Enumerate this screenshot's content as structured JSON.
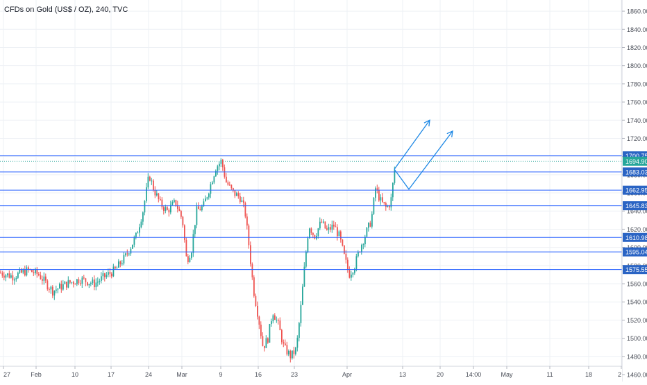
{
  "header": {
    "title": "CFDs on Gold (US$ / OZ), 240, TVC"
  },
  "colors": {
    "up": "#26a69a",
    "down": "#ef5350",
    "level_line": "#2962ff",
    "level_label_bg": "#2a64c4",
    "current_label_bg": "#26a69a",
    "projection": "#1e88e5",
    "grid": "#eef1f5",
    "axis_text": "#4a4e58"
  },
  "chart_data": {
    "type": "candlestick",
    "symbol": "CFDs on Gold (US$ / OZ)",
    "interval": "240",
    "source": "TVC",
    "ylim": [
      1460,
      1870
    ],
    "y_ticks": [
      "1860.00",
      "1840.00",
      "1820.00",
      "1800.00",
      "1780.00",
      "1760.00",
      "1740.00",
      "1720.00",
      "1700.00",
      "1680.00",
      "1660.00",
      "1640.00",
      "1620.00",
      "1600.00",
      "1580.00",
      "1560.00",
      "1540.00",
      "1520.00",
      "1500.00",
      "1480.00",
      "1460.00"
    ],
    "x_ticks": [
      "27",
      "Feb",
      "10",
      "17",
      "24",
      "Mar",
      "9",
      "16",
      "23",
      "Apr",
      "13",
      "20",
      "14:00",
      "May",
      "11",
      "18",
      "2"
    ],
    "current_price": "1694.90",
    "levels": [
      "1700.75",
      "1683.03",
      "1662.95",
      "1645.83",
      "1610.98",
      "1595.04",
      "1575.55"
    ],
    "close_path": [
      [
        0,
        1572
      ],
      [
        18,
        1568
      ],
      [
        40,
        1575
      ],
      [
        55,
        1570
      ],
      [
        75,
        1552
      ],
      [
        95,
        1560
      ],
      [
        115,
        1565
      ],
      [
        135,
        1560
      ],
      [
        150,
        1568
      ],
      [
        165,
        1575
      ],
      [
        180,
        1590
      ],
      [
        195,
        1612
      ],
      [
        205,
        1640
      ],
      [
        214,
        1680
      ],
      [
        220,
        1665
      ],
      [
        230,
        1648
      ],
      [
        240,
        1640
      ],
      [
        252,
        1650
      ],
      [
        262,
        1630
      ],
      [
        268,
        1585
      ],
      [
        275,
        1598
      ],
      [
        282,
        1640
      ],
      [
        292,
        1645
      ],
      [
        302,
        1668
      ],
      [
        310,
        1688
      ],
      [
        318,
        1695
      ],
      [
        325,
        1672
      ],
      [
        335,
        1660
      ],
      [
        345,
        1655
      ],
      [
        352,
        1640
      ],
      [
        358,
        1600
      ],
      [
        364,
        1555
      ],
      [
        372,
        1520
      ],
      [
        378,
        1490
      ],
      [
        385,
        1500
      ],
      [
        392,
        1530
      ],
      [
        400,
        1515
      ],
      [
        408,
        1490
      ],
      [
        418,
        1480
      ],
      [
        426,
        1488
      ],
      [
        432,
        1530
      ],
      [
        438,
        1580
      ],
      [
        444,
        1625
      ],
      [
        452,
        1612
      ],
      [
        462,
        1628
      ],
      [
        470,
        1618
      ],
      [
        480,
        1624
      ],
      [
        488,
        1612
      ],
      [
        495,
        1590
      ],
      [
        502,
        1570
      ],
      [
        510,
        1580
      ],
      [
        518,
        1600
      ],
      [
        526,
        1615
      ],
      [
        534,
        1630
      ],
      [
        540,
        1665
      ],
      [
        548,
        1650
      ],
      [
        556,
        1643
      ],
      [
        562,
        1650
      ],
      [
        568,
        1688
      ]
    ],
    "projections": [
      {
        "points": [
          [
            1686,
            0
          ],
          [
            1740,
            17
          ]
        ]
      },
      {
        "points": [
          [
            1686,
            0
          ],
          [
            1664,
            7
          ],
          [
            1728,
            28
          ]
        ]
      }
    ]
  }
}
